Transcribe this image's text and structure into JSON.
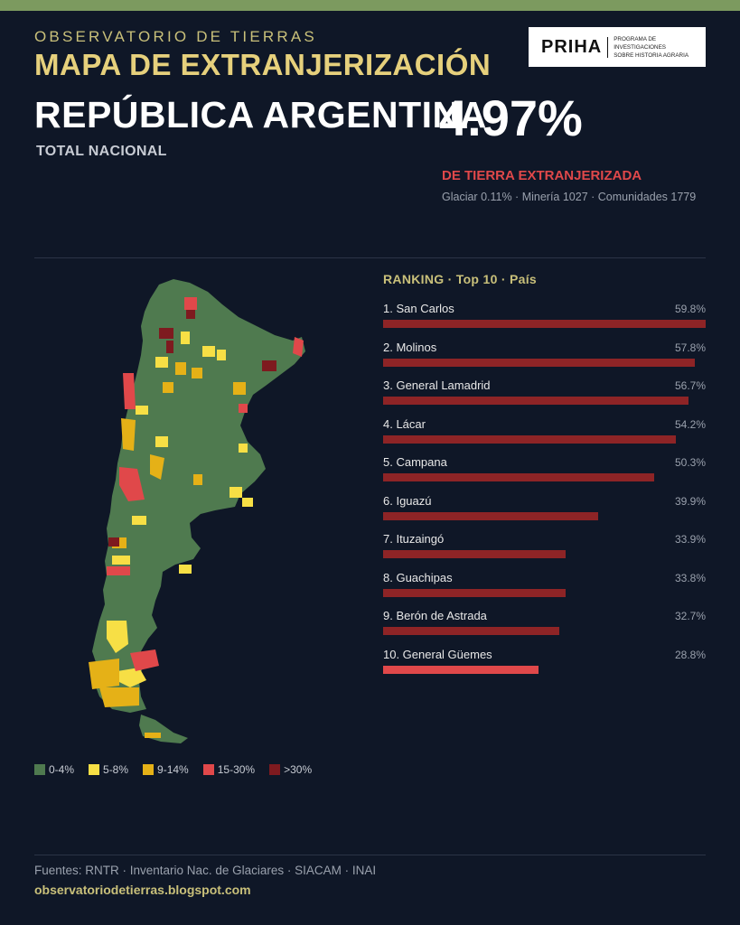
{
  "header": {
    "org": "OBSERVATORIO DE TIERRAS",
    "title": "MAPA DE EXTRANJERIZACIÓN",
    "country": "REPÚBLICA ARGENTINA",
    "total_label": "TOTAL NACIONAL",
    "percentage": "4.97%",
    "percentage_label": "DE TIERRA EXTRANJERIZADA",
    "stats": "Glaciar 0.11% · Minería 1027 · Comunidades 1779"
  },
  "logo": {
    "main": "PRIHA",
    "sub_line1": "PROGRAMA DE INVESTIGACIONES",
    "sub_line2": "SOBRE HISTORIA AGRARIA"
  },
  "legend": [
    {
      "label": "0-4%",
      "color": "#4f7a4f"
    },
    {
      "label": "5-8%",
      "color": "#f7df45"
    },
    {
      "label": "9-14%",
      "color": "#e5b117"
    },
    {
      "label": "15-30%",
      "color": "#e0484a"
    },
    {
      "label": ">30%",
      "color": "#7e1a1f"
    }
  ],
  "chart_data": {
    "type": "bar",
    "title": "RANKING · Top 10 · País",
    "categories": [
      "1. San Carlos",
      "2. Molinos",
      "3. General Lamadrid",
      "4. Lácar",
      "5. Campana",
      "6. Iguazú",
      "7. Ituzaingó",
      "8. Guachipas",
      "9. Berón de Astrada",
      "10. General Güemes"
    ],
    "values": [
      59.8,
      57.8,
      56.7,
      54.2,
      50.3,
      39.9,
      33.9,
      33.8,
      32.7,
      28.8
    ],
    "value_labels": [
      "59.8%",
      "57.8%",
      "56.7%",
      "54.2%",
      "50.3%",
      "39.9%",
      "33.9%",
      "33.8%",
      "32.7%",
      "28.8%"
    ],
    "xlim": [
      0,
      59.8
    ],
    "orientation": "horizontal",
    "bar_colors": [
      "#8e2426",
      "#8e2426",
      "#8e2426",
      "#8e2426",
      "#8e2426",
      "#8e2426",
      "#8e2426",
      "#8e2426",
      "#8e2426",
      "#e0484a"
    ]
  },
  "footer": {
    "sources": "Fuentes: RNTR · Inventario Nac. de Glaciares · SIACAM · INAI",
    "site": "observatoriodetierras.blogspot.com"
  }
}
